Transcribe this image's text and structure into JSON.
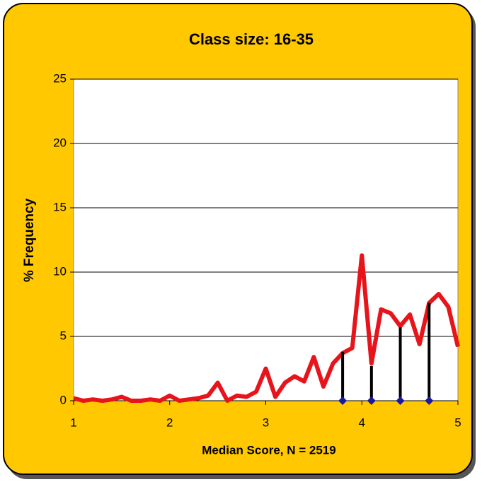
{
  "chart_data": {
    "type": "line",
    "title": "Class size: 16-35",
    "x_label": "Median  Score, N = 2519",
    "y_label": "% Frequency",
    "xlim": [
      1,
      5
    ],
    "xticks": [
      1,
      2,
      3,
      4,
      5
    ],
    "ylim": [
      0,
      25
    ],
    "yticks": [
      0,
      5,
      10,
      15,
      20,
      25
    ],
    "grid": true,
    "series": [
      {
        "type": "line",
        "color": "#e8141b",
        "x": [
          1.0,
          1.1,
          1.2,
          1.3,
          1.4,
          1.5,
          1.6,
          1.7,
          1.8,
          1.9,
          2.0,
          2.1,
          2.2,
          2.3,
          2.4,
          2.5,
          2.6,
          2.7,
          2.8,
          2.9,
          3.0,
          3.1,
          3.2,
          3.3,
          3.4,
          3.5,
          3.6,
          3.7,
          3.8,
          3.9,
          4.0,
          4.1,
          4.2,
          4.3,
          4.4,
          4.5,
          4.6,
          4.7,
          4.8,
          4.9,
          5.0
        ],
        "values": [
          0.2,
          0.0,
          0.1,
          0.0,
          0.1,
          0.3,
          0.0,
          0.0,
          0.1,
          0.0,
          0.4,
          0.0,
          0.1,
          0.2,
          0.4,
          1.4,
          0.0,
          0.4,
          0.3,
          0.7,
          2.5,
          0.3,
          1.4,
          1.9,
          1.5,
          3.4,
          1.1,
          2.9,
          3.7,
          4.1,
          11.3,
          2.9,
          7.1,
          6.8,
          5.8,
          6.7,
          4.4,
          7.6,
          8.3,
          7.3,
          4.2
        ]
      },
      {
        "type": "stem",
        "color": "#000000",
        "marker_color": "#1a1aa0",
        "x": [
          3.8,
          4.1,
          4.4,
          4.7
        ],
        "values": [
          3.8,
          2.7,
          5.7,
          7.6
        ]
      }
    ]
  }
}
